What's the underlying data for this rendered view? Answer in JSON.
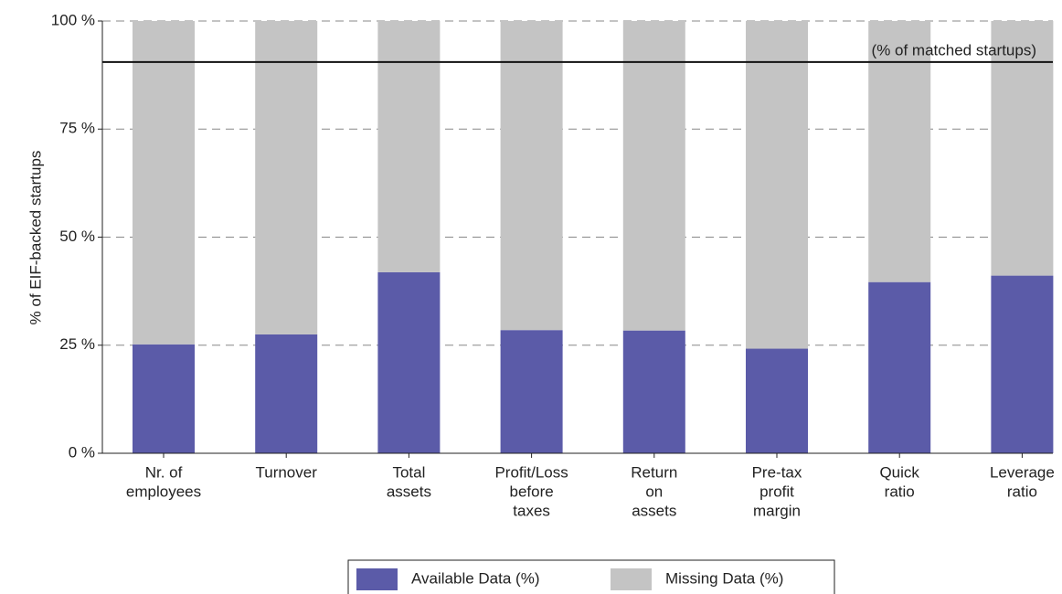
{
  "chart_data": {
    "type": "stacked_bar",
    "y_label": "% of EIF-backed startups",
    "categories": [
      [
        "Nr. of",
        "employees"
      ],
      [
        "Turnover"
      ],
      [
        "Total",
        "assets"
      ],
      [
        "Profit/Loss",
        "before",
        "taxes"
      ],
      [
        "Return",
        "on",
        "assets"
      ],
      [
        "Pre-tax",
        "profit",
        "margin"
      ],
      [
        "Quick",
        "ratio"
      ],
      [
        "Leverage",
        "ratio"
      ]
    ],
    "series": [
      {
        "name": "Available Data (%)",
        "color": "#5b5ba8",
        "values": [
          25.2,
          27.5,
          41.9,
          28.5,
          28.4,
          24.2,
          39.6,
          41.1
        ]
      },
      {
        "name": "Missing Data (%)",
        "color": "#c4c4c4",
        "values": [
          74.8,
          72.5,
          58.1,
          71.5,
          71.6,
          75.8,
          60.4,
          58.9
        ]
      }
    ],
    "ylim": [
      0,
      100
    ],
    "yticks": [
      {
        "value": 0,
        "label": "0 %"
      },
      {
        "value": 25,
        "label": "25 %"
      },
      {
        "value": 50,
        "label": "50 %"
      },
      {
        "value": 75,
        "label": "75 %"
      },
      {
        "value": 100,
        "label": "100 %"
      }
    ],
    "grid": true,
    "reference_line": {
      "value": 90.5,
      "label": "(% of matched startups)"
    },
    "legend": "bottom"
  }
}
